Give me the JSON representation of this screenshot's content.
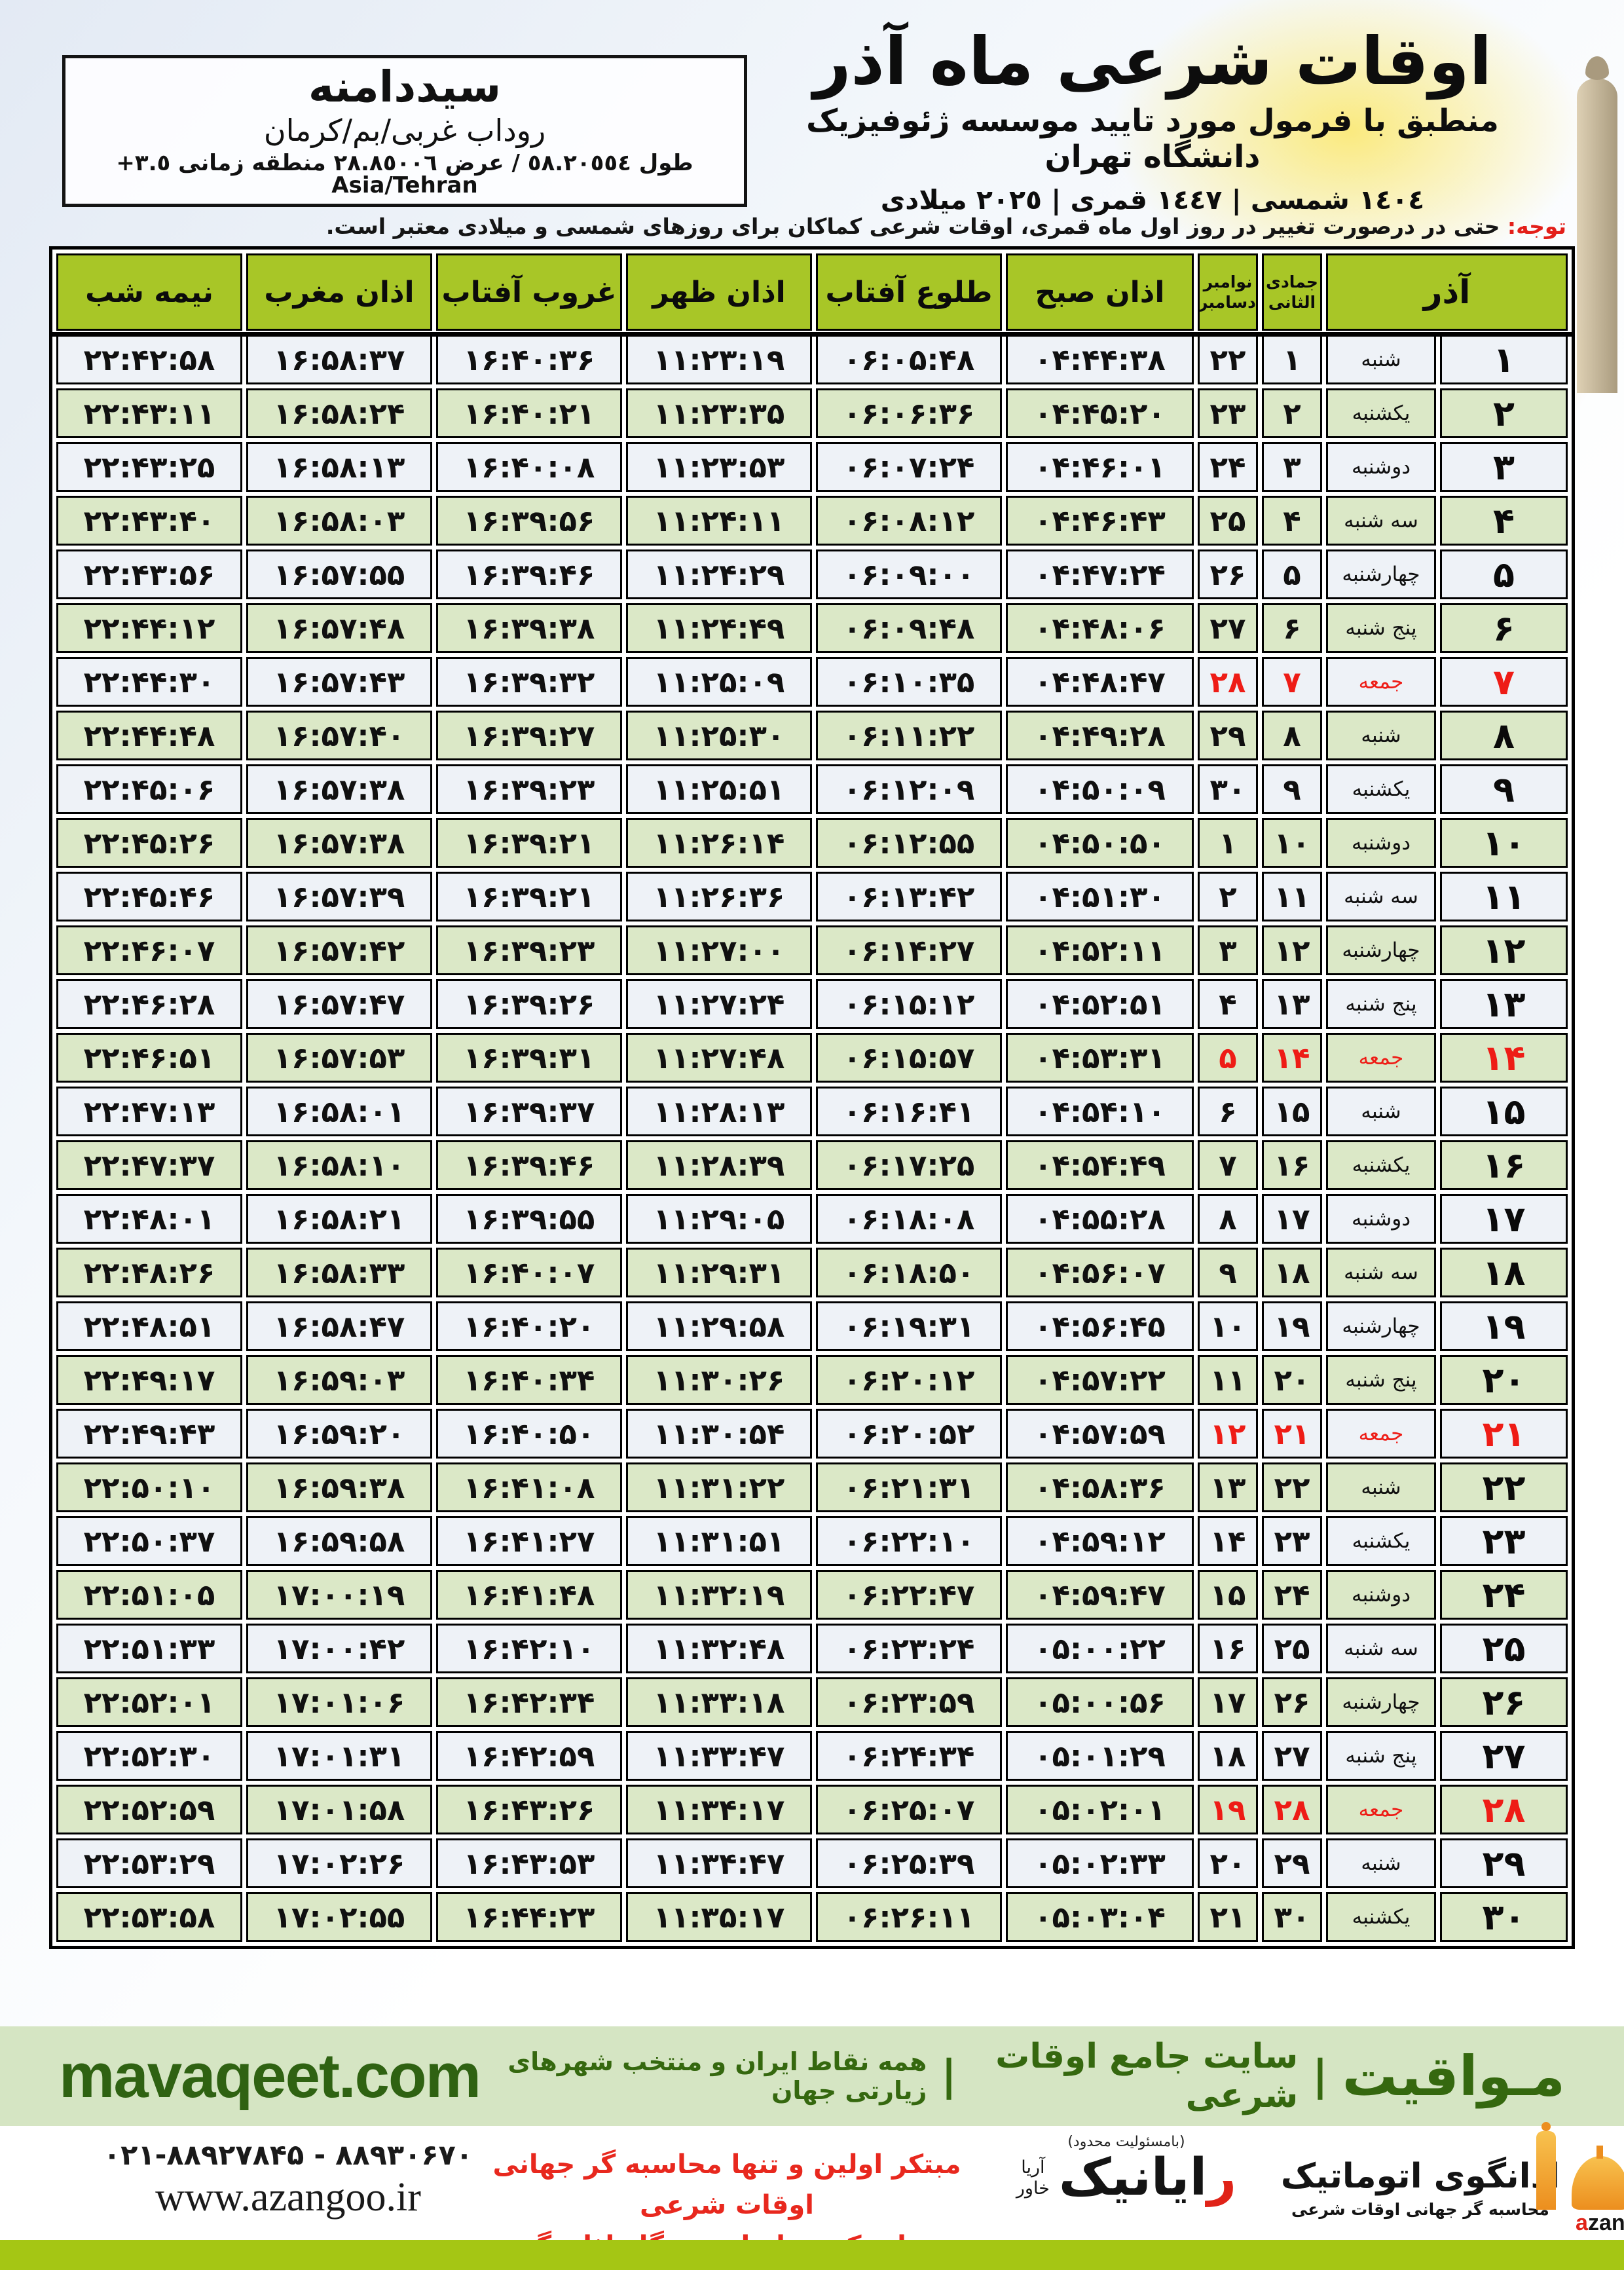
{
  "colors": {
    "accent_red": "#ee1c16",
    "header_green": "#a8c627",
    "row_green": "#dbe8c7",
    "row_white": "#eef2f7",
    "bar_light_green": "#d5e5c3",
    "dark_green": "#35680f",
    "lime": "#a5c614",
    "logo_orange": "#ec8e1e"
  },
  "location": {
    "name": "سیددامنه",
    "region": "روداب غربی/بم/کرمان",
    "coords": "طول ٥٨.٢٠٥٥٤ / عرض ٢٨.٨٥٠٠٦ منطقه زمانی ٣.٥+ Asia/Tehran"
  },
  "header": {
    "title": "اوقات شرعی ماه آذر",
    "subtitle": "منطبق با فرمول مورد تایید موسسه ژئوفیزیک دانشگاه تهران",
    "years": "١٤٠٤ شمسی | ١٤٤٧ قمری | ٢٠٢٥ میلادی"
  },
  "notice": {
    "label": "توجه:",
    "text": " حتی در درصورت تغییر در روز اول ماه قمری، اوقات شرعی کماکان برای روزهای شمسی و میلادی معتبر است."
  },
  "table": {
    "headers": {
      "azar": "آذر",
      "hijri_month": "جمادی الثانی",
      "greg_month_top": "نوامبر",
      "greg_month_bottom": "دسامبر",
      "fajr": "اذان صبح",
      "sunrise": "طلوع آفتاب",
      "dhuhr": "اذان ظهر",
      "sunset": "غروب آفتاب",
      "maghrib": "اذان مغرب",
      "midnight": "نیمه شب"
    },
    "rows": [
      {
        "azar": "۱",
        "weekday": "شنبه",
        "hijri": "۱",
        "greg": "۲۲",
        "fajr": "۰۴:۴۴:۳۸",
        "sunrise": "۰۶:۰۵:۴۸",
        "dhuhr": "۱۱:۲۳:۱۹",
        "sunset": "۱۶:۴۰:۳۶",
        "maghrib": "۱۶:۵۸:۳۷",
        "midnight": "۲۲:۴۲:۵۸",
        "friday": false
      },
      {
        "azar": "۲",
        "weekday": "یکشنبه",
        "hijri": "۲",
        "greg": "۲۳",
        "fajr": "۰۴:۴۵:۲۰",
        "sunrise": "۰۶:۰۶:۳۶",
        "dhuhr": "۱۱:۲۳:۳۵",
        "sunset": "۱۶:۴۰:۲۱",
        "maghrib": "۱۶:۵۸:۲۴",
        "midnight": "۲۲:۴۳:۱۱",
        "friday": false
      },
      {
        "azar": "۳",
        "weekday": "دوشنبه",
        "hijri": "۳",
        "greg": "۲۴",
        "fajr": "۰۴:۴۶:۰۱",
        "sunrise": "۰۶:۰۷:۲۴",
        "dhuhr": "۱۱:۲۳:۵۳",
        "sunset": "۱۶:۴۰:۰۸",
        "maghrib": "۱۶:۵۸:۱۳",
        "midnight": "۲۲:۴۳:۲۵",
        "friday": false
      },
      {
        "azar": "۴",
        "weekday": "سه شنبه",
        "hijri": "۴",
        "greg": "۲۵",
        "fajr": "۰۴:۴۶:۴۳",
        "sunrise": "۰۶:۰۸:۱۲",
        "dhuhr": "۱۱:۲۴:۱۱",
        "sunset": "۱۶:۳۹:۵۶",
        "maghrib": "۱۶:۵۸:۰۳",
        "midnight": "۲۲:۴۳:۴۰",
        "friday": false
      },
      {
        "azar": "۵",
        "weekday": "چهارشنبه",
        "hijri": "۵",
        "greg": "۲۶",
        "fajr": "۰۴:۴۷:۲۴",
        "sunrise": "۰۶:۰۹:۰۰",
        "dhuhr": "۱۱:۲۴:۲۹",
        "sunset": "۱۶:۳۹:۴۶",
        "maghrib": "۱۶:۵۷:۵۵",
        "midnight": "۲۲:۴۳:۵۶",
        "friday": false
      },
      {
        "azar": "۶",
        "weekday": "پنج شنبه",
        "hijri": "۶",
        "greg": "۲۷",
        "fajr": "۰۴:۴۸:۰۶",
        "sunrise": "۰۶:۰۹:۴۸",
        "dhuhr": "۱۱:۲۴:۴۹",
        "sunset": "۱۶:۳۹:۳۸",
        "maghrib": "۱۶:۵۷:۴۸",
        "midnight": "۲۲:۴۴:۱۲",
        "friday": false
      },
      {
        "azar": "۷",
        "weekday": "جمعه",
        "hijri": "۷",
        "greg": "۲۸",
        "fajr": "۰۴:۴۸:۴۷",
        "sunrise": "۰۶:۱۰:۳۵",
        "dhuhr": "۱۱:۲۵:۰۹",
        "sunset": "۱۶:۳۹:۳۲",
        "maghrib": "۱۶:۵۷:۴۳",
        "midnight": "۲۲:۴۴:۳۰",
        "friday": true
      },
      {
        "azar": "۸",
        "weekday": "شنبه",
        "hijri": "۸",
        "greg": "۲۹",
        "fajr": "۰۴:۴۹:۲۸",
        "sunrise": "۰۶:۱۱:۲۲",
        "dhuhr": "۱۱:۲۵:۳۰",
        "sunset": "۱۶:۳۹:۲۷",
        "maghrib": "۱۶:۵۷:۴۰",
        "midnight": "۲۲:۴۴:۴۸",
        "friday": false
      },
      {
        "azar": "۹",
        "weekday": "یکشنبه",
        "hijri": "۹",
        "greg": "۳۰",
        "fajr": "۰۴:۵۰:۰۹",
        "sunrise": "۰۶:۱۲:۰۹",
        "dhuhr": "۱۱:۲۵:۵۱",
        "sunset": "۱۶:۳۹:۲۳",
        "maghrib": "۱۶:۵۷:۳۸",
        "midnight": "۲۲:۴۵:۰۶",
        "friday": false
      },
      {
        "azar": "۱۰",
        "weekday": "دوشنبه",
        "hijri": "۱۰",
        "greg": "۱",
        "fajr": "۰۴:۵۰:۵۰",
        "sunrise": "۰۶:۱۲:۵۵",
        "dhuhr": "۱۱:۲۶:۱۴",
        "sunset": "۱۶:۳۹:۲۱",
        "maghrib": "۱۶:۵۷:۳۸",
        "midnight": "۲۲:۴۵:۲۶",
        "friday": false
      },
      {
        "azar": "۱۱",
        "weekday": "سه شنبه",
        "hijri": "۱۱",
        "greg": "۲",
        "fajr": "۰۴:۵۱:۳۰",
        "sunrise": "۰۶:۱۳:۴۲",
        "dhuhr": "۱۱:۲۶:۳۶",
        "sunset": "۱۶:۳۹:۲۱",
        "maghrib": "۱۶:۵۷:۳۹",
        "midnight": "۲۲:۴۵:۴۶",
        "friday": false
      },
      {
        "azar": "۱۲",
        "weekday": "چهارشنبه",
        "hijri": "۱۲",
        "greg": "۳",
        "fajr": "۰۴:۵۲:۱۱",
        "sunrise": "۰۶:۱۴:۲۷",
        "dhuhr": "۱۱:۲۷:۰۰",
        "sunset": "۱۶:۳۹:۲۳",
        "maghrib": "۱۶:۵۷:۴۲",
        "midnight": "۲۲:۴۶:۰۷",
        "friday": false
      },
      {
        "azar": "۱۳",
        "weekday": "پنج شنبه",
        "hijri": "۱۳",
        "greg": "۴",
        "fajr": "۰۴:۵۲:۵۱",
        "sunrise": "۰۶:۱۵:۱۲",
        "dhuhr": "۱۱:۲۷:۲۴",
        "sunset": "۱۶:۳۹:۲۶",
        "maghrib": "۱۶:۵۷:۴۷",
        "midnight": "۲۲:۴۶:۲۸",
        "friday": false
      },
      {
        "azar": "۱۴",
        "weekday": "جمعه",
        "hijri": "۱۴",
        "greg": "۵",
        "fajr": "۰۴:۵۳:۳۱",
        "sunrise": "۰۶:۱۵:۵۷",
        "dhuhr": "۱۱:۲۷:۴۸",
        "sunset": "۱۶:۳۹:۳۱",
        "maghrib": "۱۶:۵۷:۵۳",
        "midnight": "۲۲:۴۶:۵۱",
        "friday": true
      },
      {
        "azar": "۱۵",
        "weekday": "شنبه",
        "hijri": "۱۵",
        "greg": "۶",
        "fajr": "۰۴:۵۴:۱۰",
        "sunrise": "۰۶:۱۶:۴۱",
        "dhuhr": "۱۱:۲۸:۱۳",
        "sunset": "۱۶:۳۹:۳۷",
        "maghrib": "۱۶:۵۸:۰۱",
        "midnight": "۲۲:۴۷:۱۳",
        "friday": false
      },
      {
        "azar": "۱۶",
        "weekday": "یکشنبه",
        "hijri": "۱۶",
        "greg": "۷",
        "fajr": "۰۴:۵۴:۴۹",
        "sunrise": "۰۶:۱۷:۲۵",
        "dhuhr": "۱۱:۲۸:۳۹",
        "sunset": "۱۶:۳۹:۴۶",
        "maghrib": "۱۶:۵۸:۱۰",
        "midnight": "۲۲:۴۷:۳۷",
        "friday": false
      },
      {
        "azar": "۱۷",
        "weekday": "دوشنبه",
        "hijri": "۱۷",
        "greg": "۸",
        "fajr": "۰۴:۵۵:۲۸",
        "sunrise": "۰۶:۱۸:۰۸",
        "dhuhr": "۱۱:۲۹:۰۵",
        "sunset": "۱۶:۳۹:۵۵",
        "maghrib": "۱۶:۵۸:۲۱",
        "midnight": "۲۲:۴۸:۰۱",
        "friday": false
      },
      {
        "azar": "۱۸",
        "weekday": "سه شنبه",
        "hijri": "۱۸",
        "greg": "۹",
        "fajr": "۰۴:۵۶:۰۷",
        "sunrise": "۰۶:۱۸:۵۰",
        "dhuhr": "۱۱:۲۹:۳۱",
        "sunset": "۱۶:۴۰:۰۷",
        "maghrib": "۱۶:۵۸:۳۳",
        "midnight": "۲۲:۴۸:۲۶",
        "friday": false
      },
      {
        "azar": "۱۹",
        "weekday": "چهارشنبه",
        "hijri": "۱۹",
        "greg": "۱۰",
        "fajr": "۰۴:۵۶:۴۵",
        "sunrise": "۰۶:۱۹:۳۱",
        "dhuhr": "۱۱:۲۹:۵۸",
        "sunset": "۱۶:۴۰:۲۰",
        "maghrib": "۱۶:۵۸:۴۷",
        "midnight": "۲۲:۴۸:۵۱",
        "friday": false
      },
      {
        "azar": "۲۰",
        "weekday": "پنج شنبه",
        "hijri": "۲۰",
        "greg": "۱۱",
        "fajr": "۰۴:۵۷:۲۲",
        "sunrise": "۰۶:۲۰:۱۲",
        "dhuhr": "۱۱:۳۰:۲۶",
        "sunset": "۱۶:۴۰:۳۴",
        "maghrib": "۱۶:۵۹:۰۳",
        "midnight": "۲۲:۴۹:۱۷",
        "friday": false
      },
      {
        "azar": "۲۱",
        "weekday": "جمعه",
        "hijri": "۲۱",
        "greg": "۱۲",
        "fajr": "۰۴:۵۷:۵۹",
        "sunrise": "۰۶:۲۰:۵۲",
        "dhuhr": "۱۱:۳۰:۵۴",
        "sunset": "۱۶:۴۰:۵۰",
        "maghrib": "۱۶:۵۹:۲۰",
        "midnight": "۲۲:۴۹:۴۳",
        "friday": true
      },
      {
        "azar": "۲۲",
        "weekday": "شنبه",
        "hijri": "۲۲",
        "greg": "۱۳",
        "fajr": "۰۴:۵۸:۳۶",
        "sunrise": "۰۶:۲۱:۳۱",
        "dhuhr": "۱۱:۳۱:۲۲",
        "sunset": "۱۶:۴۱:۰۸",
        "maghrib": "۱۶:۵۹:۳۸",
        "midnight": "۲۲:۵۰:۱۰",
        "friday": false
      },
      {
        "azar": "۲۳",
        "weekday": "یکشنبه",
        "hijri": "۲۳",
        "greg": "۱۴",
        "fajr": "۰۴:۵۹:۱۲",
        "sunrise": "۰۶:۲۲:۱۰",
        "dhuhr": "۱۱:۳۱:۵۱",
        "sunset": "۱۶:۴۱:۲۷",
        "maghrib": "۱۶:۵۹:۵۸",
        "midnight": "۲۲:۵۰:۳۷",
        "friday": false
      },
      {
        "azar": "۲۴",
        "weekday": "دوشنبه",
        "hijri": "۲۴",
        "greg": "۱۵",
        "fajr": "۰۴:۵۹:۴۷",
        "sunrise": "۰۶:۲۲:۴۷",
        "dhuhr": "۱۱:۳۲:۱۹",
        "sunset": "۱۶:۴۱:۴۸",
        "maghrib": "۱۷:۰۰:۱۹",
        "midnight": "۲۲:۵۱:۰۵",
        "friday": false
      },
      {
        "azar": "۲۵",
        "weekday": "سه شنبه",
        "hijri": "۲۵",
        "greg": "۱۶",
        "fajr": "۰۵:۰۰:۲۲",
        "sunrise": "۰۶:۲۳:۲۴",
        "dhuhr": "۱۱:۳۲:۴۸",
        "sunset": "۱۶:۴۲:۱۰",
        "maghrib": "۱۷:۰۰:۴۲",
        "midnight": "۲۲:۵۱:۳۳",
        "friday": false
      },
      {
        "azar": "۲۶",
        "weekday": "چهارشنبه",
        "hijri": "۲۶",
        "greg": "۱۷",
        "fajr": "۰۵:۰۰:۵۶",
        "sunrise": "۰۶:۲۳:۵۹",
        "dhuhr": "۱۱:۳۳:۱۸",
        "sunset": "۱۶:۴۲:۳۴",
        "maghrib": "۱۷:۰۱:۰۶",
        "midnight": "۲۲:۵۲:۰۱",
        "friday": false
      },
      {
        "azar": "۲۷",
        "weekday": "پنج شنبه",
        "hijri": "۲۷",
        "greg": "۱۸",
        "fajr": "۰۵:۰۱:۲۹",
        "sunrise": "۰۶:۲۴:۳۴",
        "dhuhr": "۱۱:۳۳:۴۷",
        "sunset": "۱۶:۴۲:۵۹",
        "maghrib": "۱۷:۰۱:۳۱",
        "midnight": "۲۲:۵۲:۳۰",
        "friday": false
      },
      {
        "azar": "۲۸",
        "weekday": "جمعه",
        "hijri": "۲۸",
        "greg": "۱۹",
        "fajr": "۰۵:۰۲:۰۱",
        "sunrise": "۰۶:۲۵:۰۷",
        "dhuhr": "۱۱:۳۴:۱۷",
        "sunset": "۱۶:۴۳:۲۶",
        "maghrib": "۱۷:۰۱:۵۸",
        "midnight": "۲۲:۵۲:۵۹",
        "friday": true
      },
      {
        "azar": "۲۹",
        "weekday": "شنبه",
        "hijri": "۲۹",
        "greg": "۲۰",
        "fajr": "۰۵:۰۲:۳۳",
        "sunrise": "۰۶:۲۵:۳۹",
        "dhuhr": "۱۱:۳۴:۴۷",
        "sunset": "۱۶:۴۳:۵۳",
        "maghrib": "۱۷:۰۲:۲۶",
        "midnight": "۲۲:۵۳:۲۹",
        "friday": false
      },
      {
        "azar": "۳۰",
        "weekday": "یکشنبه",
        "hijri": "۳۰",
        "greg": "۲۱",
        "fajr": "۰۵:۰۳:۰۴",
        "sunrise": "۰۶:۲۶:۱۱",
        "dhuhr": "۱۱:۳۵:۱۷",
        "sunset": "۱۶:۴۴:۲۳",
        "maghrib": "۱۷:۰۲:۵۵",
        "midnight": "۲۲:۵۳:۵۸",
        "friday": false
      }
    ]
  },
  "green_bar": {
    "brand": "مـواقیت",
    "sep": "|",
    "site_label": "سایت جامع اوقات شرعی",
    "coverage": "همه نقاط ایران و منتخب شهرهای زیارتی جهان",
    "domain": "mavaqeet.com"
  },
  "footer": {
    "phone": "۰۲۱-۸۸۹۲۷۸۴۵ - ۸۸۹۳۰۶۷۰",
    "website": "www.azangoo.ir",
    "tagline1": "مبتکر اولین و تنها محاسبه گر جهانی اوقات شرعی",
    "tagline2": "و تولید کننده انواع دستگاه اذان گوی تمام خودکار ماهواره ای",
    "rayanik": {
      "first_letter": "ر",
      "name_rest": "ایانیک",
      "sub_top": "آریا",
      "sub_bottom": "خاور",
      "note": "(بامسئولیت محدود)"
    },
    "azangoo": {
      "title": "اذانگوی اتوماتیک",
      "subtitle": "محاسبه گر جهانی اوقات شرعی",
      "latin_a": "a",
      "latin_rest": "zangoo"
    }
  }
}
